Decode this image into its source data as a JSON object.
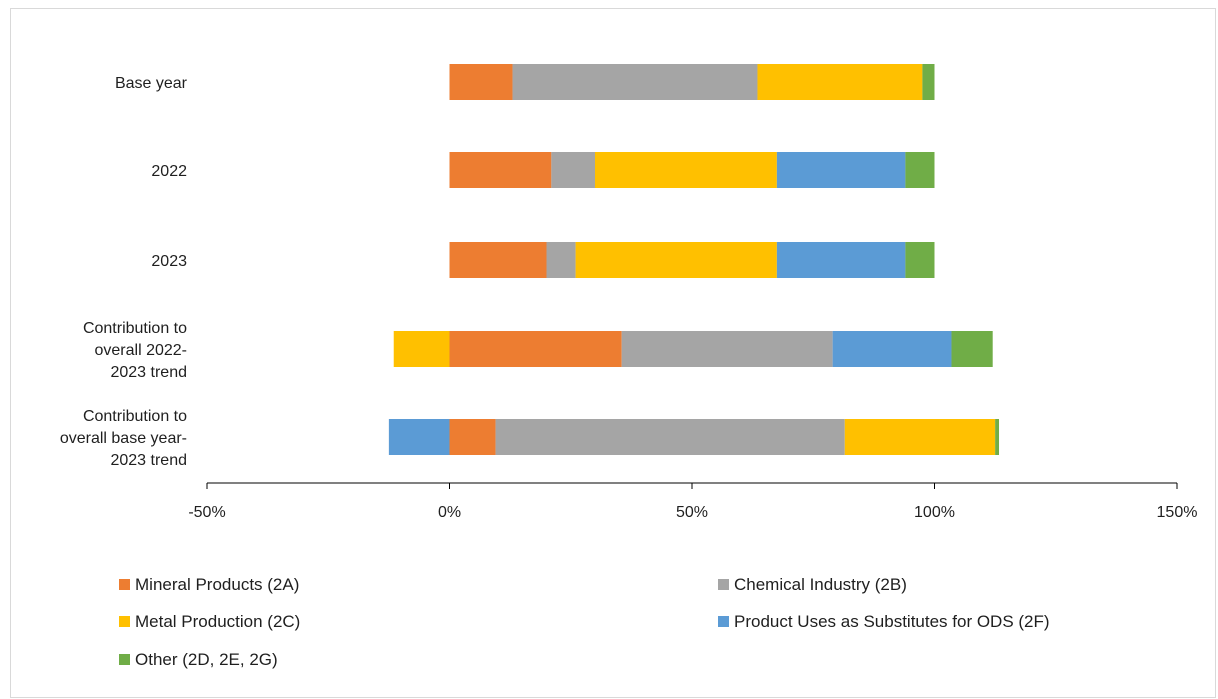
{
  "chart_data": {
    "type": "bar",
    "orientation": "horizontal",
    "stacked": true,
    "title": "",
    "xlabel": "",
    "ylabel": "",
    "categories": [
      "Base year",
      "2022",
      "2023",
      "Contribution to overall 2022-2023 trend",
      "Contribution to overall base year-2023 trend"
    ],
    "category_lines": [
      [
        "Base year"
      ],
      [
        "2022"
      ],
      [
        "2023"
      ],
      [
        "Contribution to",
        "overall 2022-",
        "2023 trend"
      ],
      [
        "Contribution to",
        "overall base year-",
        "2023 trend"
      ]
    ],
    "series": [
      {
        "name": "Mineral Products (2A)",
        "color": "#ED7D31",
        "values": [
          13,
          21,
          20,
          35.5,
          9.5
        ]
      },
      {
        "name": "Chemical Industry (2B)",
        "color": "#A5A5A5",
        "values": [
          50.5,
          9,
          6,
          43.5,
          72
        ]
      },
      {
        "name": "Metal Production (2C)",
        "color": "#FFC000",
        "values": [
          34,
          37.5,
          41.5,
          -11.5,
          31
        ]
      },
      {
        "name": "Product Uses as Substitutes for ODS (2F)",
        "color": "#5B9BD5",
        "values": [
          0,
          26.5,
          26.5,
          24.5,
          -12.5
        ]
      },
      {
        "name": "Other (2D, 2E, 2G)",
        "color": "#70AD47",
        "values": [
          2.5,
          6,
          6,
          8.5,
          0.8
        ]
      }
    ],
    "xlim": [
      -50,
      150
    ],
    "xticks": [
      -50,
      0,
      50,
      100,
      150
    ],
    "xtick_labels": [
      "-50%",
      "0%",
      "50%",
      "100%",
      "150%"
    ],
    "grid": false,
    "legend_position": "bottom"
  }
}
